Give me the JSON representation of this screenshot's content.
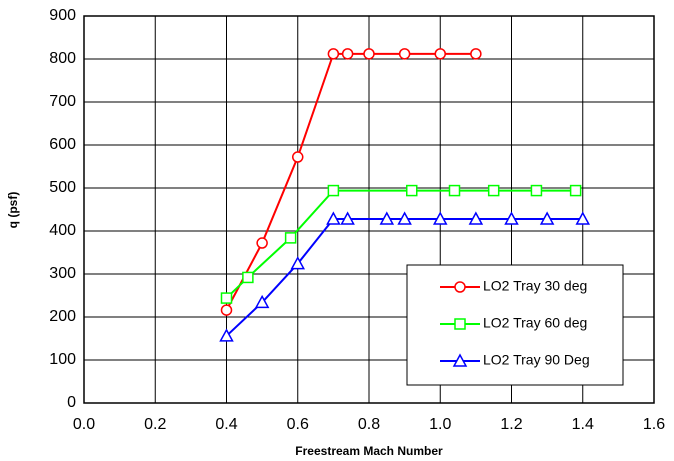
{
  "chart_data": {
    "type": "line",
    "xlabel": "Freestream Mach Number",
    "ylabel": "q (psf)",
    "xlim": [
      0,
      1.6
    ],
    "ylim": [
      0,
      900
    ],
    "xticks": [
      {
        "value": 0,
        "label": "0.0"
      },
      0.2,
      0.4,
      0.6,
      0.8,
      {
        "value": 1,
        "label": "1.0"
      },
      1.2,
      1.4,
      1.6
    ],
    "yticks": [
      0,
      100,
      200,
      300,
      400,
      500,
      600,
      700,
      800,
      900
    ],
    "grid": true,
    "legend": "lower right",
    "series": [
      {
        "name": "LO2 Tray 30 deg",
        "color": "#ff0000",
        "marker": "circle",
        "x": [
          0.4,
          0.5,
          0.6,
          0.7,
          0.74,
          0.8,
          0.9,
          1.0,
          1.1
        ],
        "values": [
          216,
          372,
          572,
          812,
          812,
          812,
          812,
          812,
          812
        ]
      },
      {
        "name": "LO2 Tray 60 deg",
        "color": "#00ff00",
        "marker": "square",
        "x": [
          0.4,
          0.46,
          0.58,
          0.7,
          0.92,
          1.04,
          1.15,
          1.27,
          1.38
        ],
        "values": [
          244,
          292,
          384,
          494,
          494,
          494,
          494,
          494,
          494
        ]
      },
      {
        "name": "LO2 Tray 90 Deg",
        "color": "#0000ff",
        "marker": "triangle",
        "x": [
          0.4,
          0.5,
          0.6,
          0.7,
          0.74,
          0.85,
          0.9,
          1.0,
          1.1,
          1.2,
          1.3,
          1.4
        ],
        "values": [
          156,
          234,
          324,
          428,
          428,
          428,
          428,
          428,
          428,
          428,
          428,
          428
        ]
      }
    ]
  }
}
